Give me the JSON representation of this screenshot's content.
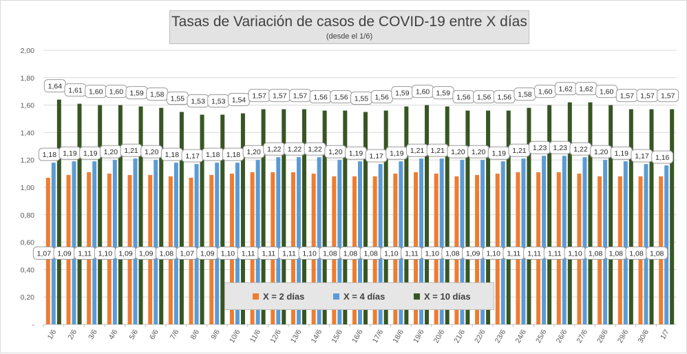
{
  "chart_data": {
    "type": "bar",
    "title": "Tasas de Variación de casos de COVID-19 entre X días",
    "subtitle": "(desde el 1/6)",
    "categories": [
      "1/6",
      "2/6",
      "3/6",
      "4/6",
      "5/6",
      "6/6",
      "7/6",
      "8/6",
      "9/6",
      "10/6",
      "11/6",
      "12/6",
      "13/6",
      "14/6",
      "15/6",
      "16/6",
      "17/6",
      "18/6",
      "19/6",
      "20/6",
      "21/6",
      "22/6",
      "23/6",
      "24/6",
      "25/6",
      "26/6",
      "27/6",
      "28/6",
      "29/6",
      "30/6",
      "1/7"
    ],
    "series": [
      {
        "name": "X = 2 días",
        "color": "#ed7d31",
        "values": [
          1.07,
          1.09,
          1.11,
          1.1,
          1.09,
          1.09,
          1.08,
          1.07,
          1.09,
          1.1,
          1.11,
          1.11,
          1.11,
          1.1,
          1.08,
          1.08,
          1.08,
          1.1,
          1.11,
          1.1,
          1.08,
          1.09,
          1.1,
          1.11,
          1.11,
          1.11,
          1.1,
          1.08,
          1.08,
          1.08,
          1.08
        ],
        "labels": [
          "1,07",
          "1,09",
          "1,11",
          "1,10",
          "1,09",
          "1,09",
          "1,08",
          "1,07",
          "1,09",
          "1,10",
          "1,11",
          "1,11",
          "1,11",
          "1,10",
          "1,08",
          "1,08",
          "1,08",
          "1,10",
          "1,11",
          "1,10",
          "1,08",
          "1,09",
          "1,10",
          "1,11",
          "1,11",
          "1,11",
          "1,10",
          "1,08",
          "1,08",
          "1,08",
          "1,08"
        ]
      },
      {
        "name": "X = 4 días",
        "color": "#5b9bd5",
        "values": [
          1.18,
          1.19,
          1.19,
          1.2,
          1.21,
          1.2,
          1.18,
          1.17,
          1.18,
          1.18,
          1.2,
          1.22,
          1.22,
          1.22,
          1.2,
          1.19,
          1.17,
          1.19,
          1.21,
          1.21,
          1.2,
          1.2,
          1.19,
          1.21,
          1.23,
          1.23,
          1.22,
          1.2,
          1.19,
          1.17,
          1.16
        ],
        "labels": [
          "1,18",
          "1,19",
          "1,19",
          "1,20",
          "1,21",
          "1,20",
          "1,18",
          "1,17",
          "1,18",
          "1,18",
          "1,20",
          "1,22",
          "1,22",
          "1,22",
          "1,20",
          "1,19",
          "1,17",
          "1,19",
          "1,21",
          "1,21",
          "1,20",
          "1,20",
          "1,19",
          "1,21",
          "1,23",
          "1,23",
          "1,22",
          "1,20",
          "1,19",
          "1,17",
          "1,16"
        ]
      },
      {
        "name": "X = 10 días",
        "color": "#375623",
        "values": [
          1.64,
          1.61,
          1.6,
          1.6,
          1.59,
          1.58,
          1.55,
          1.53,
          1.53,
          1.54,
          1.57,
          1.57,
          1.57,
          1.56,
          1.56,
          1.55,
          1.56,
          1.59,
          1.6,
          1.59,
          1.56,
          1.56,
          1.56,
          1.58,
          1.6,
          1.62,
          1.62,
          1.6,
          1.57,
          1.57,
          1.57
        ],
        "labels": [
          "1,64",
          "1,61",
          "1,60",
          "1,60",
          "1,59",
          "1,58",
          "1,55",
          "1,53",
          "1,53",
          "1,54",
          "1,57",
          "1,57",
          "1,57",
          "1,56",
          "1,56",
          "1,55",
          "1,56",
          "1,59",
          "1,60",
          "1,59",
          "1,56",
          "1,56",
          "1,56",
          "1,58",
          "1,60",
          "1,62",
          "1,62",
          "1,60",
          "1,57",
          "1,57",
          "1,57"
        ]
      }
    ],
    "ylim": [
      0,
      2.0
    ],
    "yticks": [
      "-",
      "0,20",
      "0,40",
      "0,60",
      "0,80",
      "1,00",
      "1,20",
      "1,40",
      "1,60",
      "1,80",
      "2,00"
    ],
    "legend_position": "bottom-center",
    "grid": "horizontal"
  }
}
